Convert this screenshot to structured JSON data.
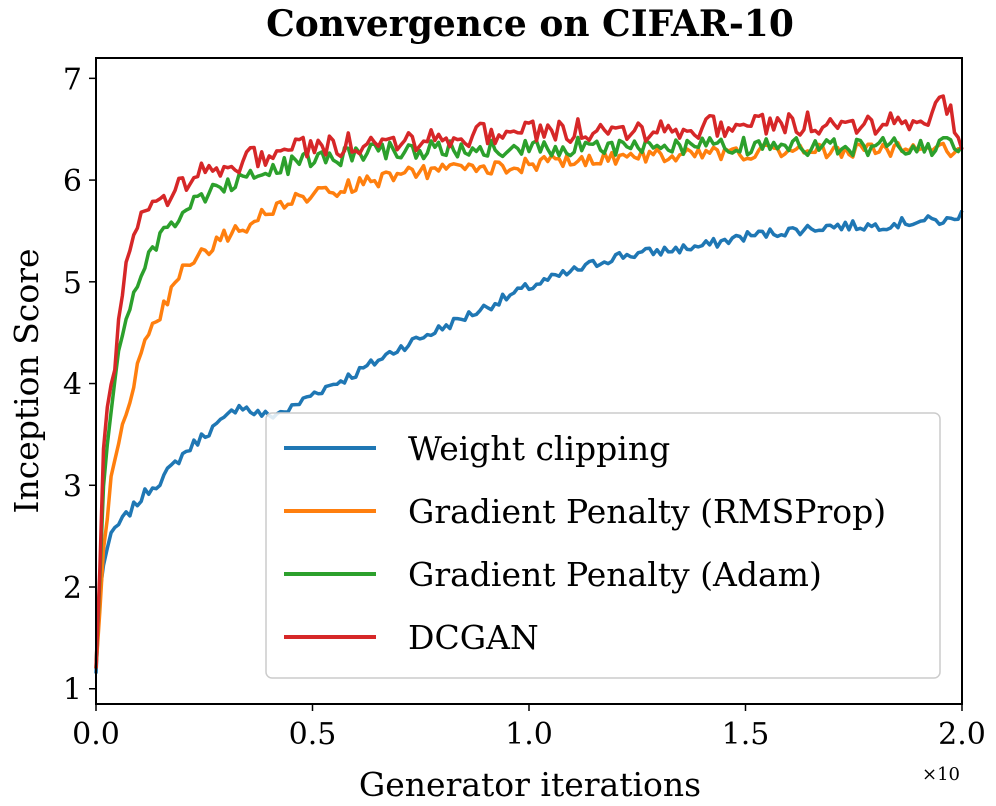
{
  "chart_data": {
    "type": "line",
    "title": "Convergence on CIFAR-10",
    "xlabel": "Generator iterations",
    "ylabel": "Inception Score",
    "x_multiplier": "×10",
    "xlim": [
      0.0,
      2.0
    ],
    "ylim": [
      0.85,
      7.2
    ],
    "xticks": [
      "0.0",
      "0.5",
      "1.0",
      "1.5",
      "2.0"
    ],
    "xtick_values": [
      0.0,
      0.5,
      1.0,
      1.5,
      2.0
    ],
    "yticks": [
      "1",
      "2",
      "3",
      "4",
      "5",
      "6",
      "7"
    ],
    "ytick_values": [
      1,
      2,
      3,
      4,
      5,
      6,
      7
    ],
    "grid": false,
    "legend_position": "lower-right",
    "series": [
      {
        "name": "Weight clipping",
        "color": "#1f77b4",
        "x": [
          0,
          0.01,
          0.02,
          0.04,
          0.06,
          0.08,
          0.1,
          0.12,
          0.15,
          0.18,
          0.2,
          0.25,
          0.3,
          0.33,
          0.36,
          0.4,
          0.45,
          0.5,
          0.6,
          0.7,
          0.8,
          0.9,
          1.0,
          1.1,
          1.2,
          1.3,
          1.4,
          1.5,
          1.6,
          1.7,
          1.8,
          1.9,
          1.98,
          2.0
        ],
        "y": [
          1.15,
          2.05,
          2.3,
          2.55,
          2.65,
          2.75,
          2.85,
          2.95,
          3.05,
          3.2,
          3.3,
          3.5,
          3.65,
          3.8,
          3.72,
          3.68,
          3.75,
          3.9,
          4.1,
          4.35,
          4.55,
          4.75,
          4.95,
          5.1,
          5.25,
          5.3,
          5.35,
          5.45,
          5.5,
          5.55,
          5.55,
          5.6,
          5.6,
          5.7
        ]
      },
      {
        "name": "Gradient Penalty (RMSProp)",
        "color": "#ff7f0e",
        "x": [
          0,
          0.02,
          0.04,
          0.06,
          0.08,
          0.1,
          0.12,
          0.15,
          0.18,
          0.2,
          0.25,
          0.3,
          0.35,
          0.4,
          0.45,
          0.5,
          0.6,
          0.7,
          0.8,
          0.9,
          1.0,
          1.1,
          1.2,
          1.3,
          1.4,
          1.5,
          1.6,
          1.7,
          1.8,
          1.9,
          2.0
        ],
        "y": [
          1.2,
          2.5,
          3.2,
          3.6,
          3.9,
          4.2,
          4.45,
          4.7,
          4.95,
          5.1,
          5.3,
          5.45,
          5.55,
          5.7,
          5.8,
          5.85,
          5.95,
          6.05,
          6.1,
          6.12,
          6.15,
          6.2,
          6.22,
          6.25,
          6.25,
          6.27,
          6.28,
          6.28,
          6.3,
          6.3,
          6.3
        ]
      },
      {
        "name": "Gradient Penalty (Adam)",
        "color": "#2ca02c",
        "x": [
          0,
          0.02,
          0.04,
          0.06,
          0.08,
          0.1,
          0.12,
          0.15,
          0.18,
          0.2,
          0.25,
          0.3,
          0.35,
          0.4,
          0.45,
          0.5,
          0.6,
          0.7,
          0.8,
          0.9,
          1.0,
          1.1,
          1.2,
          1.3,
          1.4,
          1.5,
          1.6,
          1.7,
          1.8,
          1.9,
          2.0
        ],
        "y": [
          1.2,
          3.3,
          3.9,
          4.5,
          4.8,
          5.0,
          5.2,
          5.45,
          5.6,
          5.7,
          5.85,
          5.95,
          6.05,
          6.1,
          6.15,
          6.2,
          6.25,
          6.3,
          6.3,
          6.32,
          6.32,
          6.33,
          6.33,
          6.33,
          6.33,
          6.33,
          6.33,
          6.33,
          6.33,
          6.33,
          6.33
        ]
      },
      {
        "name": "DCGAN",
        "color": "#d62728",
        "x": [
          0,
          0.02,
          0.04,
          0.06,
          0.08,
          0.1,
          0.12,
          0.15,
          0.18,
          0.2,
          0.25,
          0.3,
          0.35,
          0.4,
          0.45,
          0.5,
          0.6,
          0.7,
          0.8,
          0.9,
          1.0,
          1.1,
          1.2,
          1.3,
          1.4,
          1.5,
          1.6,
          1.7,
          1.8,
          1.9,
          1.97,
          2.0
        ],
        "y": [
          1.2,
          3.6,
          4.1,
          4.9,
          5.3,
          5.6,
          5.75,
          5.8,
          5.9,
          6.0,
          6.1,
          6.15,
          6.2,
          6.25,
          6.3,
          6.32,
          6.35,
          6.4,
          6.42,
          6.45,
          6.47,
          6.48,
          6.5,
          6.5,
          6.52,
          6.53,
          6.55,
          6.55,
          6.57,
          6.6,
          6.75,
          6.3
        ]
      }
    ]
  }
}
